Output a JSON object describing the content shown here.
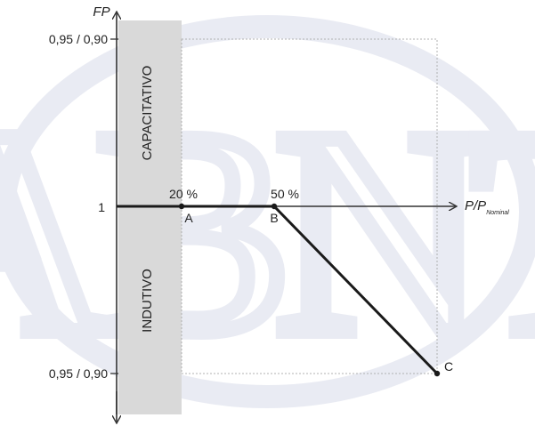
{
  "colors": {
    "zone_fill": "#d9d9d9",
    "curve": "#1a1a1a",
    "axis": "#333333",
    "dotted_frame": "#b0b0b0",
    "watermark": "#e6e8f1"
  },
  "watermark": {
    "text": "ABNT"
  },
  "y_axis": {
    "label": "FP",
    "tick_top": "0,95 / 0,90",
    "tick_mid": "1",
    "tick_bottom": "0,95 / 0,90"
  },
  "x_axis": {
    "label": "P/P",
    "label_sub": "Nominal"
  },
  "zones": {
    "upper": "CAPACITATIVO",
    "lower": "INDUTIVO"
  },
  "points": {
    "a": {
      "name": "A",
      "percent": "20 %"
    },
    "b": {
      "name": "B",
      "percent": "50 %"
    },
    "c": {
      "name": "C"
    }
  }
}
